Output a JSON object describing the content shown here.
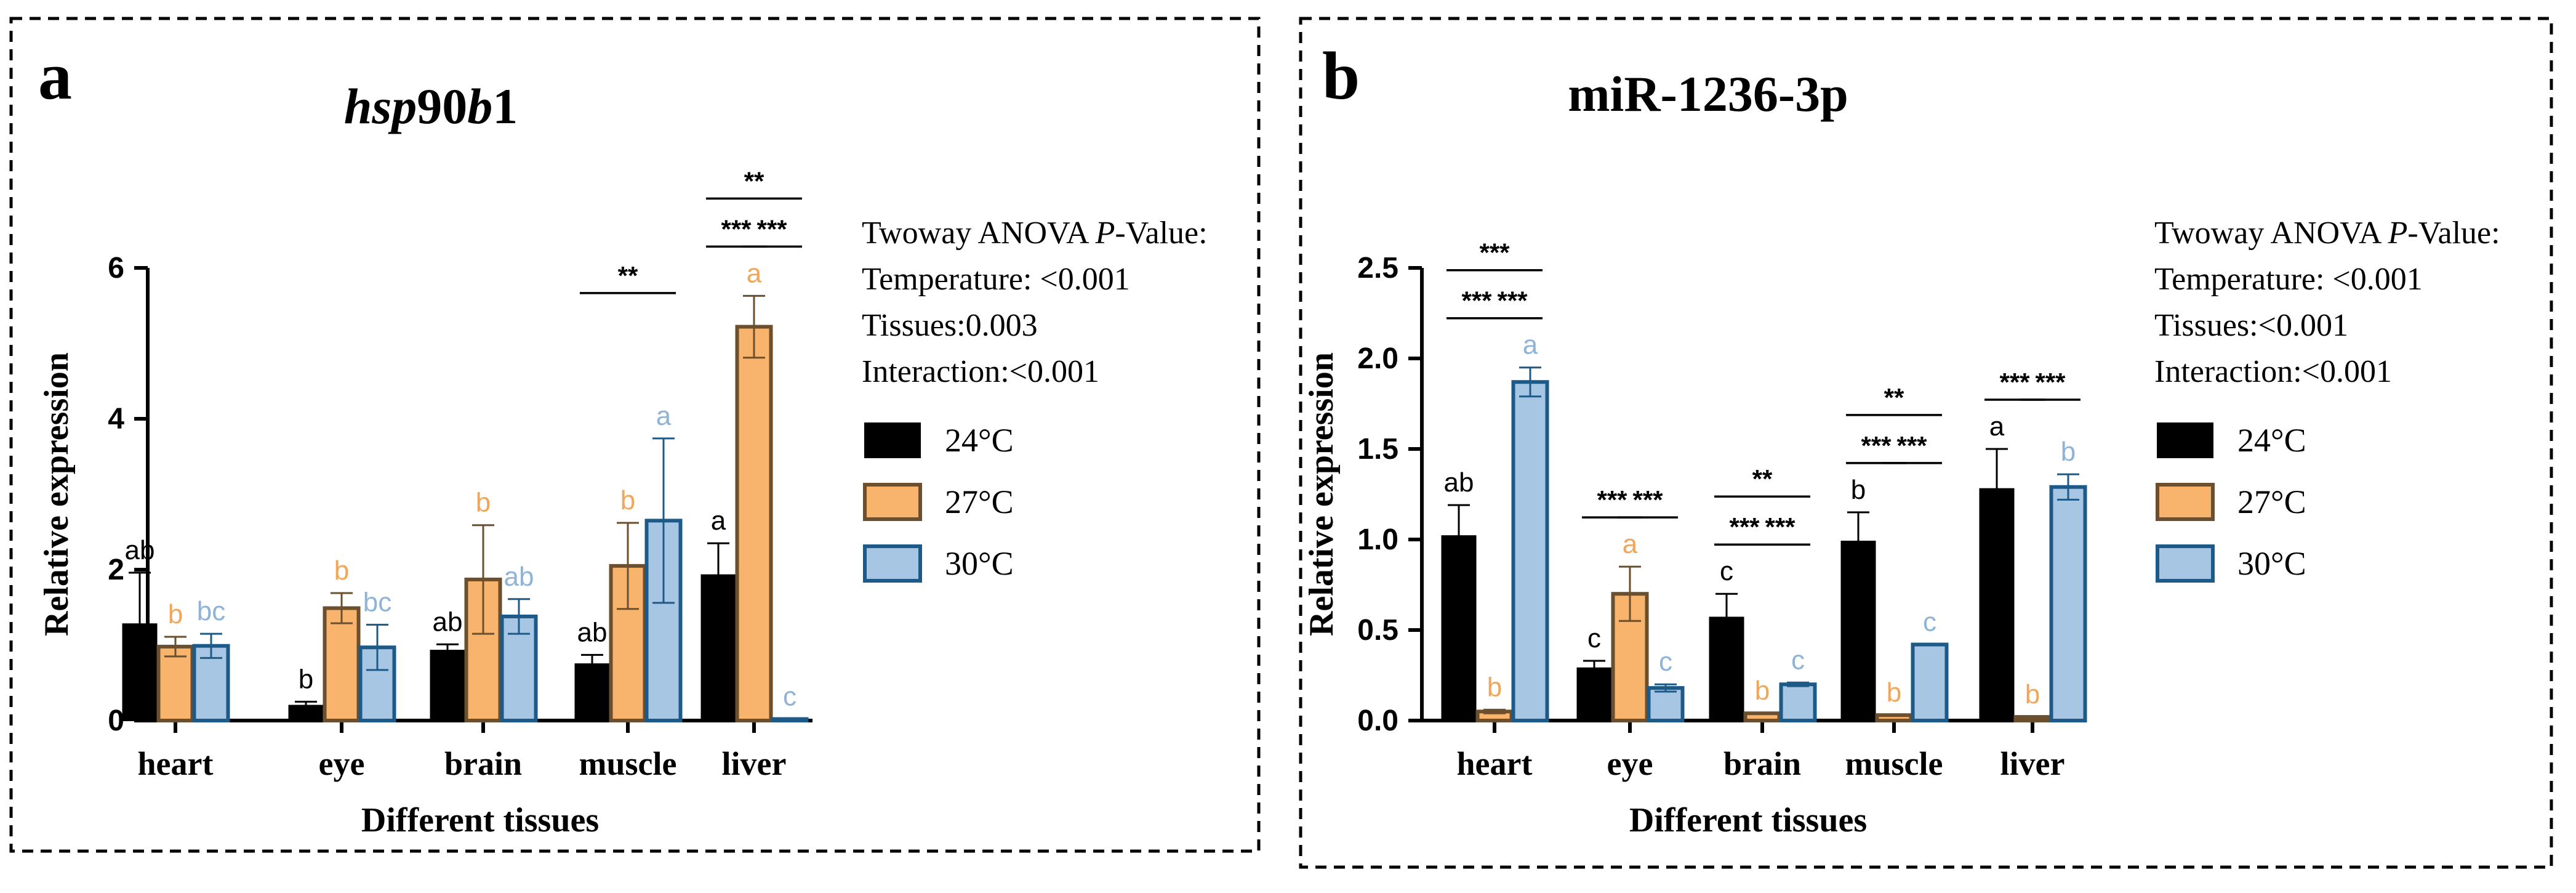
{
  "colors": {
    "c24_fill": "#000000",
    "c24_stroke": "#000000",
    "c27_fill": "#f8b46c",
    "c27_stroke": "#6b4f2e",
    "c30_fill": "#a7c6e3",
    "c30_stroke": "#1d5a88",
    "letter_24": "#000000",
    "letter_27": "#f2a65a",
    "letter_30": "#8fb4d8",
    "axis": "#000000",
    "frame": "#000000"
  },
  "chart_data": [
    {
      "type": "bar",
      "panel_label": "a",
      "title_parts": [
        {
          "text": "hsp",
          "italic": true
        },
        {
          "text": "90",
          "italic": false
        },
        {
          "text": "b",
          "italic": true
        },
        {
          "text": "1",
          "italic": false
        }
      ],
      "xlabel": "Different tissues",
      "ylabel": "Relative expression",
      "categories": [
        "heart",
        "eye",
        "brain",
        "muscle",
        "liver"
      ],
      "ylim": [
        0,
        6
      ],
      "yticks": [
        0,
        2,
        4,
        6
      ],
      "ytick_labels": [
        "0",
        "2",
        "4",
        "6"
      ],
      "series": [
        {
          "name": "24°C",
          "values": [
            1.28,
            0.2,
            0.93,
            0.75,
            1.93
          ],
          "errors": [
            0.68,
            0.05,
            0.08,
            0.12,
            0.42
          ],
          "letters": [
            "ab",
            "b",
            "ab",
            "ab",
            "a"
          ]
        },
        {
          "name": "27°C",
          "values": [
            0.98,
            1.49,
            1.87,
            2.05,
            5.22
          ],
          "errors": [
            0.13,
            0.2,
            0.72,
            0.57,
            0.41
          ],
          "letters": [
            "b",
            "b",
            "b",
            "b",
            "a"
          ]
        },
        {
          "name": "30°C",
          "values": [
            0.99,
            0.97,
            1.38,
            2.65,
            0.02
          ],
          "errors": [
            0.16,
            0.3,
            0.23,
            1.09,
            0.0
          ],
          "letters": [
            "bc",
            "bc",
            "ab",
            "a",
            "c"
          ]
        }
      ],
      "significance": [
        {
          "tissue": "muscle",
          "from": "24°C",
          "to": "30°C",
          "label": "**",
          "level": 3
        },
        {
          "tissue": "liver",
          "from": "24°C",
          "to": "27°C",
          "label": "***",
          "level": 1
        },
        {
          "tissue": "liver",
          "from": "27°C",
          "to": "30°C",
          "label": "***",
          "level": 1
        },
        {
          "tissue": "liver",
          "from": "24°C",
          "to": "30°C",
          "label": "**",
          "level": 2
        }
      ],
      "anova": {
        "title": "Twoway ANOVA P-Value:",
        "lines": [
          "Temperature: <0.001",
          "Tissues:0.003",
          "Interaction:<0.001"
        ]
      },
      "legend": [
        "24°C",
        "27°C",
        "30°C"
      ]
    },
    {
      "type": "bar",
      "panel_label": "b",
      "title_parts": [
        {
          "text": "miR-1236-3p",
          "italic": false
        }
      ],
      "xlabel": "Different tissues",
      "ylabel": "Relative expression",
      "categories": [
        "heart",
        "eye",
        "brain",
        "muscle",
        "liver"
      ],
      "ylim": [
        0,
        2.5
      ],
      "yticks": [
        0,
        0.5,
        1.0,
        1.5,
        2.0,
        2.5
      ],
      "ytick_labels": [
        "0.0",
        "0.5",
        "1.0",
        "1.5",
        "2.0",
        "2.5"
      ],
      "series": [
        {
          "name": "24°C",
          "values": [
            1.02,
            0.29,
            0.57,
            0.99,
            1.28
          ],
          "errors": [
            0.17,
            0.04,
            0.13,
            0.16,
            0.22
          ],
          "letters": [
            "ab",
            "c",
            "c",
            "b",
            "a"
          ]
        },
        {
          "name": "27°C",
          "values": [
            0.05,
            0.7,
            0.04,
            0.03,
            0.02
          ],
          "errors": [
            0.01,
            0.15,
            0.0,
            0.0,
            0.0
          ],
          "letters": [
            "b",
            "a",
            "b",
            "b",
            "b"
          ]
        },
        {
          "name": "30°C",
          "values": [
            1.87,
            0.18,
            0.2,
            0.42,
            1.29
          ],
          "errors": [
            0.08,
            0.02,
            0.01,
            0.0,
            0.07
          ],
          "letters": [
            "a",
            "c",
            "c",
            "c",
            "b"
          ]
        }
      ],
      "significance": [
        {
          "tissue": "heart",
          "from": "24°C",
          "to": "27°C",
          "label": "***",
          "level": 1
        },
        {
          "tissue": "heart",
          "from": "27°C",
          "to": "30°C",
          "label": "***",
          "level": 1
        },
        {
          "tissue": "heart",
          "from": "24°C",
          "to": "30°C",
          "label": "***",
          "level": 2
        },
        {
          "tissue": "eye",
          "from": "24°C",
          "to": "27°C",
          "label": "***",
          "level": 1
        },
        {
          "tissue": "eye",
          "from": "27°C",
          "to": "30°C",
          "label": "***",
          "level": 1
        },
        {
          "tissue": "brain",
          "from": "24°C",
          "to": "27°C",
          "label": "***",
          "level": 1
        },
        {
          "tissue": "brain",
          "from": "27°C",
          "to": "30°C",
          "label": "***",
          "level": 1
        },
        {
          "tissue": "brain",
          "from": "24°C",
          "to": "30°C",
          "label": "**",
          "level": 2
        },
        {
          "tissue": "muscle",
          "from": "24°C",
          "to": "27°C",
          "label": "***",
          "level": 1
        },
        {
          "tissue": "muscle",
          "from": "27°C",
          "to": "30°C",
          "label": "***",
          "level": 1
        },
        {
          "tissue": "muscle",
          "from": "24°C",
          "to": "30°C",
          "label": "**",
          "level": 2
        },
        {
          "tissue": "liver",
          "from": "24°C",
          "to": "27°C",
          "label": "***",
          "level": 1
        },
        {
          "tissue": "liver",
          "from": "27°C",
          "to": "30°C",
          "label": "***",
          "level": 1
        }
      ],
      "anova": {
        "title": "Twoway ANOVA P-Value:",
        "lines": [
          "Temperature: <0.001",
          "Tissues:<0.001",
          "Interaction:<0.001"
        ]
      },
      "legend": [
        "24°C",
        "27°C",
        "30°C"
      ]
    }
  ]
}
